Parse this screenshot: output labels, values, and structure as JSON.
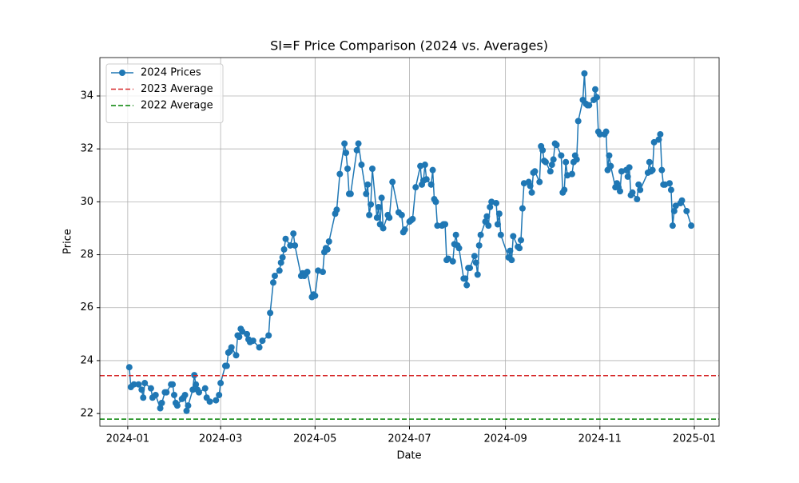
{
  "chart_data": {
    "type": "line",
    "title": "SI=F Price Comparison (2024 vs. Averages)",
    "x_label": "Date",
    "y_label": "Price",
    "x": [
      "2024-01-02",
      "2024-01-03",
      "2024-01-05",
      "2024-01-08",
      "2024-01-10",
      "2024-01-11",
      "2024-01-12",
      "2024-01-16",
      "2024-01-17",
      "2024-01-19",
      "2024-01-22",
      "2024-01-23",
      "2024-01-25",
      "2024-01-26",
      "2024-01-29",
      "2024-01-30",
      "2024-01-31",
      "2024-02-01",
      "2024-02-02",
      "2024-02-05",
      "2024-02-06",
      "2024-02-07",
      "2024-02-08",
      "2024-02-09",
      "2024-02-12",
      "2024-02-13",
      "2024-02-14",
      "2024-02-15",
      "2024-02-16",
      "2024-02-20",
      "2024-02-21",
      "2024-02-23",
      "2024-02-27",
      "2024-02-29",
      "2024-03-01",
      "2024-03-04",
      "2024-03-05",
      "2024-03-06",
      "2024-03-07",
      "2024-03-08",
      "2024-03-11",
      "2024-03-12",
      "2024-03-13",
      "2024-03-14",
      "2024-03-15",
      "2024-03-18",
      "2024-03-19",
      "2024-03-20",
      "2024-03-22",
      "2024-03-26",
      "2024-03-28",
      "2024-04-01",
      "2024-04-02",
      "2024-04-04",
      "2024-04-05",
      "2024-04-08",
      "2024-04-09",
      "2024-04-10",
      "2024-04-11",
      "2024-04-12",
      "2024-04-15",
      "2024-04-17",
      "2024-04-18",
      "2024-04-22",
      "2024-04-23",
      "2024-04-24",
      "2024-04-25",
      "2024-04-26",
      "2024-04-29",
      "2024-04-30",
      "2024-05-01",
      "2024-05-03",
      "2024-05-06",
      "2024-05-07",
      "2024-05-08",
      "2024-05-09",
      "2024-05-10",
      "2024-05-14",
      "2024-05-15",
      "2024-05-17",
      "2024-05-20",
      "2024-05-21",
      "2024-05-22",
      "2024-05-23",
      "2024-05-24",
      "2024-05-28",
      "2024-05-29",
      "2024-05-31",
      "2024-06-03",
      "2024-06-04",
      "2024-06-05",
      "2024-06-06",
      "2024-06-07",
      "2024-06-10",
      "2024-06-11",
      "2024-06-12",
      "2024-06-13",
      "2024-06-14",
      "2024-06-17",
      "2024-06-18",
      "2024-06-20",
      "2024-06-24",
      "2024-06-26",
      "2024-06-27",
      "2024-06-28",
      "2024-07-01",
      "2024-07-02",
      "2024-07-03",
      "2024-07-05",
      "2024-07-08",
      "2024-07-09",
      "2024-07-10",
      "2024-07-11",
      "2024-07-12",
      "2024-07-15",
      "2024-07-16",
      "2024-07-17",
      "2024-07-18",
      "2024-07-19",
      "2024-07-22",
      "2024-07-23",
      "2024-07-24",
      "2024-07-25",
      "2024-07-26",
      "2024-07-29",
      "2024-07-30",
      "2024-07-31",
      "2024-08-01",
      "2024-08-02",
      "2024-08-05",
      "2024-08-06",
      "2024-08-07",
      "2024-08-08",
      "2024-08-09",
      "2024-08-12",
      "2024-08-13",
      "2024-08-14",
      "2024-08-15",
      "2024-08-16",
      "2024-08-19",
      "2024-08-20",
      "2024-08-21",
      "2024-08-22",
      "2024-08-23",
      "2024-08-26",
      "2024-08-27",
      "2024-08-28",
      "2024-08-29",
      "2024-09-03",
      "2024-09-04",
      "2024-09-05",
      "2024-09-06",
      "2024-09-09",
      "2024-09-10",
      "2024-09-11",
      "2024-09-12",
      "2024-09-13",
      "2024-09-16",
      "2024-09-17",
      "2024-09-18",
      "2024-09-19",
      "2024-09-20",
      "2024-09-23",
      "2024-09-24",
      "2024-09-25",
      "2024-09-26",
      "2024-09-27",
      "2024-09-30",
      "2024-10-01",
      "2024-10-02",
      "2024-10-03",
      "2024-10-04",
      "2024-10-07",
      "2024-10-08",
      "2024-10-09",
      "2024-10-10",
      "2024-10-11",
      "2024-10-14",
      "2024-10-15",
      "2024-10-16",
      "2024-10-17",
      "2024-10-18",
      "2024-10-21",
      "2024-10-22",
      "2024-10-23",
      "2024-10-24",
      "2024-10-25",
      "2024-10-28",
      "2024-10-29",
      "2024-10-30",
      "2024-10-31",
      "2024-11-01",
      "2024-11-04",
      "2024-11-05",
      "2024-11-06",
      "2024-11-07",
      "2024-11-08",
      "2024-11-11",
      "2024-11-12",
      "2024-11-13",
      "2024-11-14",
      "2024-11-15",
      "2024-11-18",
      "2024-11-19",
      "2024-11-20",
      "2024-11-21",
      "2024-11-22",
      "2024-11-25",
      "2024-11-26",
      "2024-11-27",
      "2024-12-02",
      "2024-12-03",
      "2024-12-04",
      "2024-12-05",
      "2024-12-06",
      "2024-12-09",
      "2024-12-10",
      "2024-12-11",
      "2024-12-12",
      "2024-12-13",
      "2024-12-16",
      "2024-12-17",
      "2024-12-18",
      "2024-12-19",
      "2024-12-20",
      "2024-12-23",
      "2024-12-24",
      "2024-12-27",
      "2024-12-30"
    ],
    "series": [
      {
        "name": "2024 Prices",
        "color": "#1f77b4",
        "values": [
          23.75,
          23.0,
          23.1,
          23.1,
          22.9,
          22.6,
          23.15,
          22.95,
          22.6,
          22.7,
          22.2,
          22.4,
          22.8,
          22.8,
          23.1,
          23.1,
          22.7,
          22.4,
          22.3,
          22.55,
          22.6,
          22.7,
          22.1,
          22.3,
          22.9,
          23.45,
          23.1,
          22.9,
          22.8,
          22.95,
          22.6,
          22.45,
          22.5,
          22.7,
          23.15,
          23.8,
          23.8,
          24.3,
          24.35,
          24.5,
          24.2,
          24.95,
          24.9,
          25.2,
          25.1,
          25.0,
          24.8,
          24.7,
          24.75,
          24.5,
          24.75,
          24.95,
          25.8,
          26.95,
          27.2,
          27.4,
          27.7,
          27.9,
          28.2,
          28.6,
          28.35,
          28.8,
          28.35,
          27.2,
          27.3,
          27.2,
          27.3,
          27.35,
          26.4,
          26.5,
          26.45,
          27.4,
          27.35,
          28.1,
          28.25,
          28.2,
          28.5,
          29.55,
          29.7,
          31.05,
          32.2,
          31.85,
          31.25,
          30.3,
          30.3,
          31.95,
          32.2,
          31.4,
          30.3,
          30.65,
          29.5,
          29.9,
          31.25,
          29.4,
          29.8,
          29.15,
          30.15,
          29.0,
          29.5,
          29.4,
          30.75,
          29.6,
          29.5,
          28.85,
          28.95,
          29.25,
          29.3,
          29.35,
          30.55,
          31.35,
          30.65,
          30.8,
          31.4,
          30.85,
          30.65,
          31.2,
          30.1,
          30.0,
          29.1,
          29.1,
          29.15,
          29.15,
          27.8,
          27.85,
          27.75,
          28.4,
          28.75,
          28.35,
          28.25,
          27.1,
          27.1,
          26.85,
          27.5,
          27.5,
          27.95,
          27.7,
          27.25,
          28.35,
          28.75,
          29.25,
          29.45,
          29.1,
          29.8,
          30.0,
          29.95,
          29.15,
          29.55,
          28.75,
          27.9,
          28.15,
          27.8,
          28.7,
          28.3,
          28.25,
          28.55,
          29.75,
          30.7,
          30.75,
          30.6,
          30.35,
          31.1,
          31.15,
          30.75,
          32.1,
          31.95,
          31.55,
          31.5,
          31.15,
          31.4,
          31.6,
          32.2,
          32.15,
          31.75,
          30.35,
          30.45,
          31.5,
          31.0,
          31.05,
          31.5,
          31.75,
          31.6,
          33.05,
          33.85,
          34.85,
          33.7,
          33.65,
          33.65,
          33.85,
          34.25,
          33.95,
          32.65,
          32.55,
          32.55,
          32.65,
          31.2,
          31.75,
          31.35,
          30.55,
          30.7,
          30.55,
          30.4,
          31.15,
          31.2,
          30.95,
          31.3,
          30.25,
          30.35,
          30.1,
          30.65,
          30.45,
          31.1,
          31.5,
          31.15,
          31.2,
          32.25,
          32.35,
          32.55,
          31.2,
          30.65,
          30.65,
          30.7,
          30.45,
          29.1,
          29.65,
          29.85,
          29.95,
          30.05,
          29.65,
          29.1
        ]
      }
    ],
    "hlines": [
      {
        "name": "2023 Average",
        "color": "#d62728",
        "value": 23.43,
        "linestyle": "dashed"
      },
      {
        "name": "2022 Average",
        "color": "#008000",
        "value": 21.79,
        "linestyle": "dashed"
      }
    ],
    "xlim": [
      "2023-12-14",
      "2025-01-17"
    ],
    "xticks": [
      {
        "value": "2024-01-01",
        "label": "2024-01"
      },
      {
        "value": "2024-03-01",
        "label": "2024-03"
      },
      {
        "value": "2024-05-01",
        "label": "2024-05"
      },
      {
        "value": "2024-07-01",
        "label": "2024-07"
      },
      {
        "value": "2024-09-01",
        "label": "2024-09"
      },
      {
        "value": "2024-11-01",
        "label": "2024-11"
      },
      {
        "value": "2025-01-01",
        "label": "2025-01"
      }
    ],
    "ylim": [
      21.52,
      35.45
    ],
    "yticks": [
      22,
      24,
      26,
      28,
      30,
      32,
      34
    ],
    "grid": true,
    "legend": "upper left",
    "marker": "circle"
  }
}
